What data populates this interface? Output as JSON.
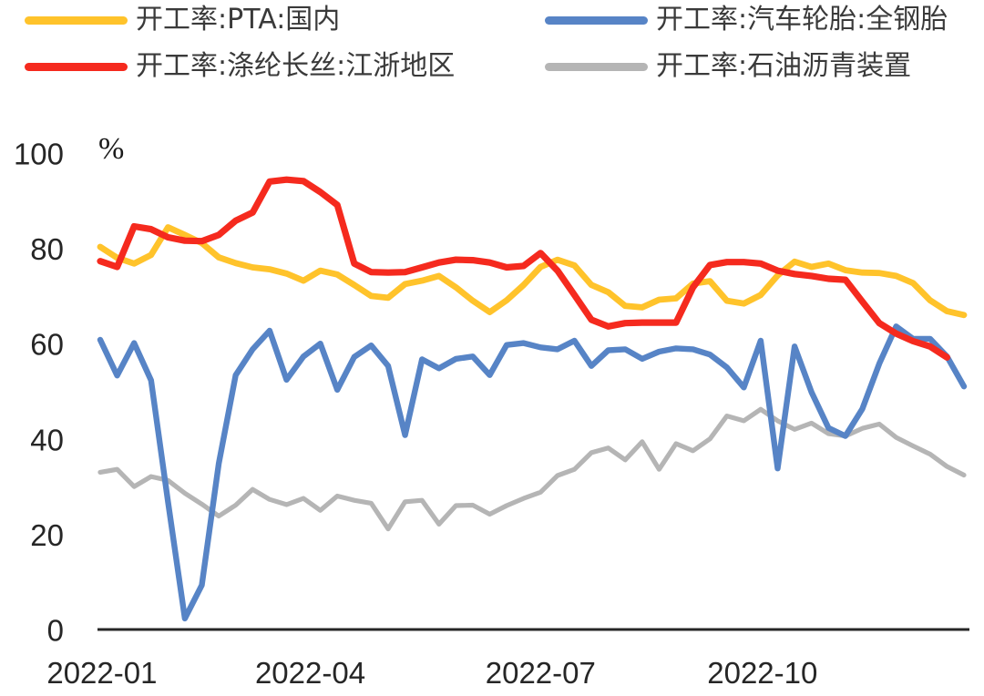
{
  "chart_data": {
    "type": "line",
    "title": "",
    "unit_label": "%",
    "legend_position": "top",
    "grid": false,
    "axis_color": "#262626",
    "x_axis": {
      "tick_labels": [
        "2022-01",
        "2022-04",
        "2022-07",
        "2022-10"
      ],
      "tick_weeks": [
        0.1,
        12.4,
        26,
        39.1
      ],
      "total_weeks": 52,
      "frequency": "weekly"
    },
    "y_axis": {
      "ticks": [
        0,
        20,
        40,
        60,
        80,
        100
      ],
      "range": [
        0,
        100
      ]
    },
    "series": [
      {
        "name": "开工率:PTA:国内",
        "color": "#FFC32B",
        "stroke_width": 6.8,
        "z": 2,
        "values": [
          80.5,
          78.2,
          77.0,
          78.8,
          84.6,
          83.0,
          81.3,
          78.3,
          77.1,
          76.2,
          75.8,
          74.9,
          73.4,
          75.5,
          74.7,
          72.5,
          70.2,
          69.8,
          72.7,
          73.4,
          74.4,
          72.0,
          69.2,
          66.8,
          69.3,
          72.5,
          76.3,
          77.8,
          76.6,
          72.5,
          71.0,
          68.1,
          67.8,
          69.4,
          69.7,
          72.8,
          73.3,
          69.2,
          68.6,
          70.4,
          74.5,
          77.4,
          76.3,
          77.0,
          75.6,
          75.1,
          75.0,
          74.4,
          72.9,
          69.3,
          67.0,
          66.2
        ]
      },
      {
        "name": "开工率:汽车轮胎:全钢胎",
        "color": "#5784C6",
        "stroke_width": 6.4,
        "z": 1,
        "values": [
          61.0,
          53.5,
          60.3,
          52.5,
          27.0,
          2.5,
          9.5,
          35.0,
          53.6,
          59.0,
          62.9,
          52.6,
          57.5,
          60.2,
          50.5,
          57.4,
          59.8,
          55.5,
          41.0,
          56.9,
          55.0,
          57.0,
          57.5,
          53.6,
          59.9,
          60.3,
          59.4,
          59.0,
          60.8,
          55.5,
          58.8,
          59.0,
          57.0,
          58.5,
          59.2,
          59.0,
          57.9,
          55.2,
          51.0,
          60.8,
          34.0,
          59.6,
          50.0,
          42.5,
          40.8,
          46.5,
          56.0,
          63.8,
          61.2,
          61.2,
          57.5,
          51.2
        ]
      },
      {
        "name": "开工率:涤纶长丝:江浙地区",
        "color": "#F52A1E",
        "stroke_width": 7.2,
        "z": 3,
        "values": [
          77.5,
          76.3,
          84.8,
          84.2,
          82.5,
          81.8,
          81.7,
          83.0,
          86.0,
          87.7,
          94.2,
          94.6,
          94.3,
          92.0,
          89.3,
          77.0,
          75.2,
          75.1,
          75.2,
          76.2,
          77.2,
          77.8,
          77.7,
          77.2,
          76.2,
          76.5,
          79.2,
          75.5,
          70.4,
          65.2,
          63.8,
          64.5,
          64.6,
          64.6,
          64.6,
          72.0,
          76.7,
          77.3,
          77.3,
          77.0,
          75.5,
          74.8,
          74.4,
          73.8,
          73.6,
          69.0,
          64.5,
          62.3,
          60.7,
          59.6,
          57.3
        ]
      },
      {
        "name": "开工率:石油沥青装置",
        "color": "#B5B5B5",
        "stroke_width": 5.2,
        "z": 0,
        "values": [
          33.2,
          33.8,
          30.2,
          32.3,
          31.5,
          28.8,
          26.5,
          24.0,
          26.3,
          29.6,
          27.5,
          26.4,
          27.7,
          25.2,
          28.2,
          27.3,
          26.7,
          21.3,
          27.0,
          27.3,
          22.3,
          26.2,
          26.3,
          24.4,
          26.2,
          27.7,
          29.0,
          32.5,
          33.8,
          37.3,
          38.3,
          35.8,
          39.6,
          33.8,
          39.2,
          37.7,
          40.2,
          45.0,
          44.0,
          46.4,
          44.0,
          42.2,
          43.5,
          41.3,
          40.8,
          42.4,
          43.3,
          40.5,
          38.7,
          37.0,
          34.4,
          32.6
        ]
      }
    ]
  }
}
